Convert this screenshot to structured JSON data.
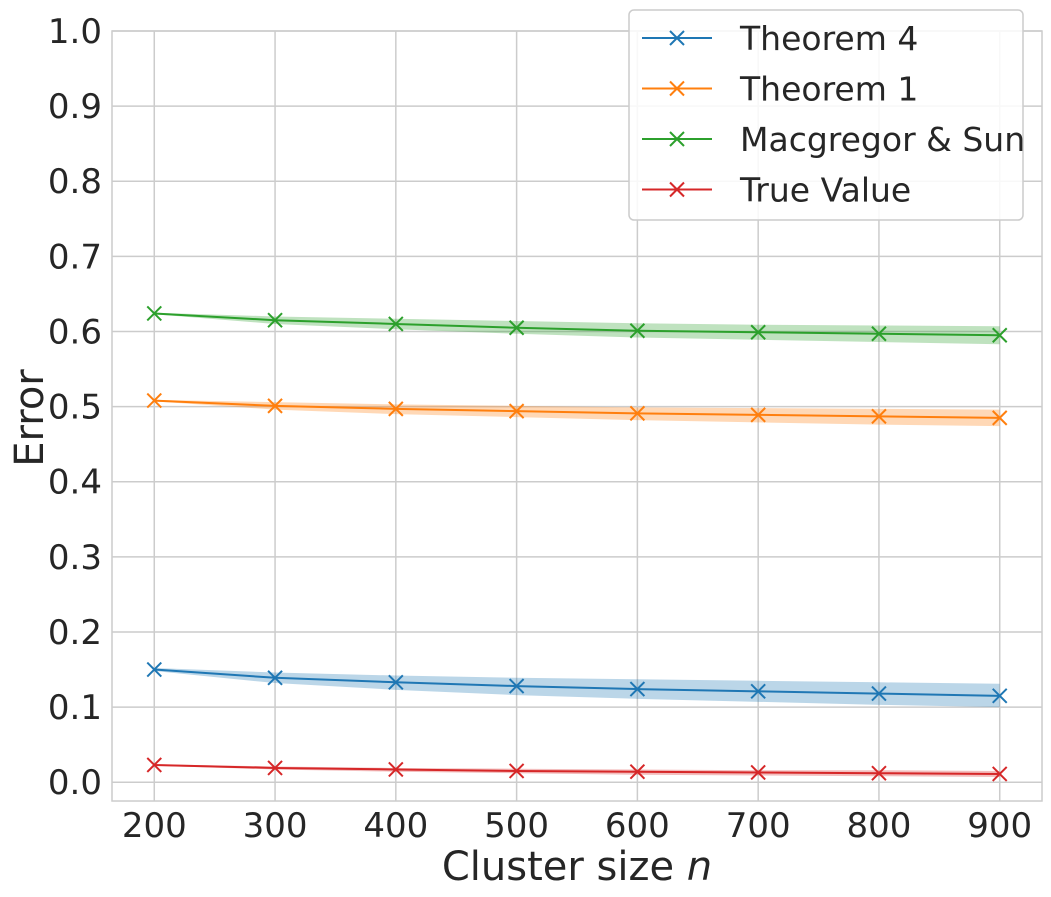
{
  "chart_data": {
    "type": "line",
    "title": "",
    "xlabel_main": "Cluster size ",
    "xlabel_var": "n",
    "ylabel": "Error",
    "x": [
      200,
      300,
      400,
      500,
      600,
      700,
      800,
      900
    ],
    "xticks": [
      "200",
      "300",
      "400",
      "500",
      "600",
      "700",
      "800",
      "900"
    ],
    "yticks": [
      "0.0",
      "0.1",
      "0.2",
      "0.3",
      "0.4",
      "0.5",
      "0.6",
      "0.7",
      "0.8",
      "0.9",
      "1.0"
    ],
    "xlim": [
      165,
      935
    ],
    "ylim": [
      -0.025,
      1.0
    ],
    "grid": true,
    "legend_position": "top-right",
    "marker": "x",
    "series": [
      {
        "name": "Theorem 4",
        "color": "#1f77b4",
        "values": [
          0.15,
          0.139,
          0.133,
          0.128,
          0.124,
          0.121,
          0.118,
          0.115
        ],
        "lower": [
          0.148,
          0.132,
          0.123,
          0.116,
          0.111,
          0.107,
          0.103,
          0.1
        ],
        "upper": [
          0.152,
          0.146,
          0.142,
          0.139,
          0.137,
          0.135,
          0.133,
          0.131
        ]
      },
      {
        "name": "Theorem 1",
        "color": "#ff7f0e",
        "values": [
          0.508,
          0.501,
          0.497,
          0.494,
          0.491,
          0.489,
          0.487,
          0.485
        ],
        "lower": [
          0.507,
          0.496,
          0.49,
          0.486,
          0.482,
          0.479,
          0.476,
          0.474
        ],
        "upper": [
          0.509,
          0.506,
          0.503,
          0.501,
          0.499,
          0.498,
          0.497,
          0.496
        ]
      },
      {
        "name": "Macgregor & Sun",
        "color": "#2ca02c",
        "values": [
          0.624,
          0.615,
          0.61,
          0.605,
          0.601,
          0.599,
          0.597,
          0.595
        ],
        "lower": [
          0.623,
          0.61,
          0.603,
          0.597,
          0.592,
          0.589,
          0.586,
          0.583
        ],
        "upper": [
          0.625,
          0.62,
          0.617,
          0.614,
          0.611,
          0.609,
          0.608,
          0.607
        ]
      },
      {
        "name": "True Value",
        "color": "#d62728",
        "values": [
          0.023,
          0.019,
          0.017,
          0.015,
          0.014,
          0.013,
          0.012,
          0.011
        ],
        "lower": [
          0.022,
          0.017,
          0.014,
          0.012,
          0.01,
          0.009,
          0.008,
          0.007
        ],
        "upper": [
          0.024,
          0.021,
          0.019,
          0.018,
          0.017,
          0.016,
          0.016,
          0.015
        ]
      }
    ]
  }
}
